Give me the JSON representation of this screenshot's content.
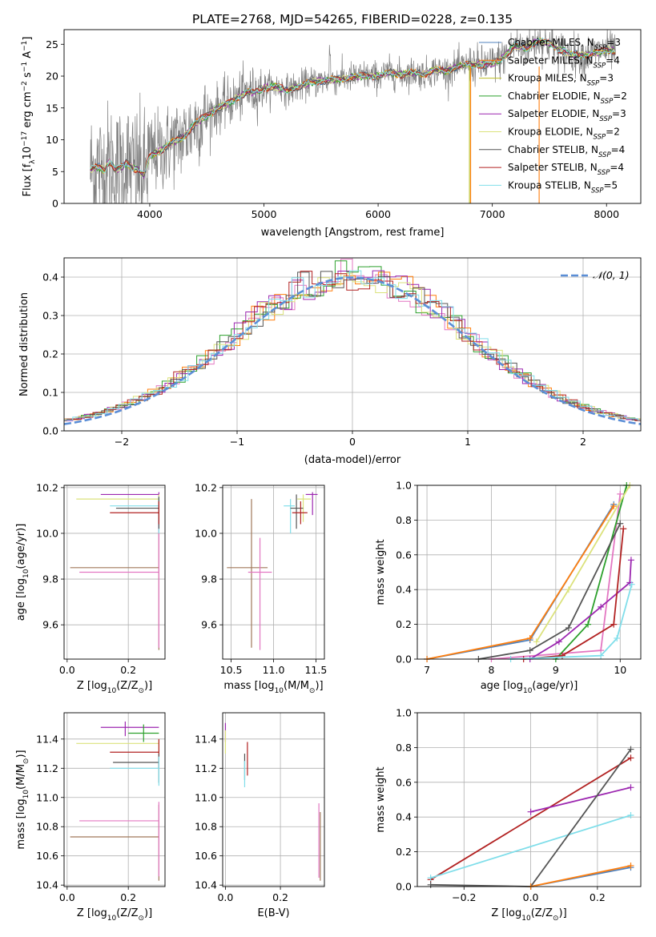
{
  "figure": {
    "title": "PLATE=2768, MJD=54265, FIBERID=0228, z=0.135"
  },
  "colors": {
    "chabrier_miles": "#4f81bd",
    "salpeter_miles": "#ff7f0e",
    "kroupa_miles": "#bcbd22",
    "chabrier_elodie": "#2ca02c",
    "salpeter_elodie": "#9c27b0",
    "kroupa_elodie": "#dbe27c",
    "chabrier_stelib": "#555555",
    "salpeter_stelib": "#b22222",
    "kroupa_stelib": "#80deea",
    "pink": "#e377c2",
    "brown": "#a0785a",
    "data_gray": "#808080",
    "gaussian": "#5b8ed6",
    "grid": "#b0b0b0"
  },
  "legend_spectrum": [
    {
      "text": "Chabrier MILES, N",
      "sub": "SSP",
      "tail": "=3",
      "color": "chabrier_miles"
    },
    {
      "text": "Salpeter MILES, N",
      "sub": "SSP",
      "tail": "=4",
      "color": "salpeter_miles"
    },
    {
      "text": "Kroupa MILES, N",
      "sub": "SSP",
      "tail": "=3",
      "color": "kroupa_miles"
    },
    {
      "text": "Chabrier ELODIE, N",
      "sub": "SSP",
      "tail": "=2",
      "color": "chabrier_elodie"
    },
    {
      "text": "Salpeter ELODIE, N",
      "sub": "SSP",
      "tail": "=3",
      "color": "salpeter_elodie"
    },
    {
      "text": "Kroupa ELODIE, N",
      "sub": "SSP",
      "tail": "=2",
      "color": "kroupa_elodie"
    },
    {
      "text": "Chabrier STELIB, N",
      "sub": "SSP",
      "tail": "=4",
      "color": "chabrier_stelib"
    },
    {
      "text": "Salpeter STELIB, N",
      "sub": "SSP",
      "tail": "=4",
      "color": "salpeter_stelib"
    },
    {
      "text": "Kroupa STELIB, N",
      "sub": "SSP",
      "tail": "=5",
      "color": "kroupa_stelib"
    }
  ],
  "legend_hist": {
    "text": "𝒩(0, 1)"
  },
  "chart_data": [
    {
      "id": "spectrum",
      "type": "line",
      "xlabel": "wavelength [Angstrom, rest frame]",
      "ylabel": "Flux [f_λ 10^-17 erg cm^-2 s^-1 A^-1]",
      "xlim": [
        3250,
        8300
      ],
      "ylim": [
        0,
        27.3
      ],
      "xticks": [
        4000,
        5000,
        6000,
        7000,
        8000
      ],
      "yticks": [
        0,
        5,
        10,
        15,
        20,
        25
      ],
      "grid": false,
      "legend": "top-right",
      "model_shape": [
        [
          3480,
          5.3
        ],
        [
          3550,
          5.8
        ],
        [
          3600,
          5.2
        ],
        [
          3650,
          6.6
        ],
        [
          3700,
          5.2
        ],
        [
          3750,
          5.7
        ],
        [
          3800,
          6.4
        ],
        [
          3850,
          5.6
        ],
        [
          3900,
          5.3
        ],
        [
          3950,
          4.4
        ],
        [
          4000,
          7.5
        ],
        [
          4100,
          8.3
        ],
        [
          4200,
          9.6
        ],
        [
          4300,
          10.5
        ],
        [
          4400,
          12.6
        ],
        [
          4500,
          13.8
        ],
        [
          4600,
          15.0
        ],
        [
          4700,
          15.9
        ],
        [
          4800,
          16.9
        ],
        [
          4860,
          17.6
        ],
        [
          4900,
          17.4
        ],
        [
          5000,
          18.1
        ],
        [
          5100,
          18.4
        ],
        [
          5200,
          17.8
        ],
        [
          5300,
          18.3
        ],
        [
          5400,
          19.0
        ],
        [
          5500,
          19.2
        ],
        [
          5600,
          19.5
        ],
        [
          5700,
          19.6
        ],
        [
          5800,
          19.9
        ],
        [
          5900,
          20.1
        ],
        [
          6000,
          19.9
        ],
        [
          6100,
          20.6
        ],
        [
          6200,
          20.2
        ],
        [
          6300,
          20.6
        ],
        [
          6400,
          20.3
        ],
        [
          6500,
          21.0
        ],
        [
          6600,
          20.8
        ],
        [
          6700,
          21.5
        ],
        [
          6800,
          21.8
        ],
        [
          6900,
          21.7
        ],
        [
          7000,
          21.9
        ],
        [
          7100,
          23.0
        ],
        [
          7200,
          24.8
        ],
        [
          7300,
          24.4
        ],
        [
          7400,
          25.6
        ],
        [
          7500,
          25.1
        ],
        [
          7600,
          24.0
        ],
        [
          7700,
          23.5
        ],
        [
          7800,
          23.2
        ],
        [
          7900,
          23.6
        ],
        [
          8000,
          24.2
        ],
        [
          8080,
          23.8
        ]
      ],
      "dropouts": [
        {
          "x": 6800,
          "color": "kroupa_miles"
        },
        {
          "x": 6810,
          "color": "salpeter_miles"
        },
        {
          "x": 7410,
          "color": "salpeter_miles"
        }
      ]
    },
    {
      "id": "residuals",
      "type": "bar",
      "xlabel": "(data-model)/error",
      "ylabel": "Normed distribution",
      "xlim": [
        -2.5,
        2.5
      ],
      "ylim": [
        0,
        0.45
      ],
      "xticks": [
        -2,
        -1,
        0,
        1,
        2
      ],
      "yticks": [
        0.0,
        0.1,
        0.2,
        0.3,
        0.4
      ],
      "grid": true,
      "legend": "top-right",
      "bin_width": 0.1,
      "series_colors": [
        "pink",
        "salpeter_miles",
        "chabrier_elodie",
        "salpeter_elodie",
        "kroupa_elodie",
        "chabrier_stelib",
        "salpeter_stelib",
        "kroupa_stelib"
      ]
    },
    {
      "id": "age_vs_Z",
      "type": "scatter",
      "xlabel": "Z [log10(Z/Z☉)]",
      "ylabel": "age  [log10(age/yr)]",
      "xlim": [
        -0.01,
        0.32
      ],
      "ylim": [
        9.45,
        10.21
      ],
      "xticks": [
        0.0,
        0.2
      ],
      "yticks": [
        9.6,
        9.8,
        10.0,
        10.2
      ],
      "grid": true,
      "errorbars": [
        {
          "x": 0.3,
          "y": 9.85,
          "x0": 0.01,
          "x1": 0.3,
          "y0": 9.49,
          "y1": 10.15,
          "color": "brown"
        },
        {
          "x": 0.3,
          "y": 9.83,
          "x0": 0.04,
          "x1": 0.3,
          "y0": 9.5,
          "y1": 10.15,
          "color": "pink"
        },
        {
          "x": 0.3,
          "y": 10.17,
          "x0": 0.11,
          "x1": 0.3,
          "y0": 10.02,
          "y1": 10.18,
          "color": "salpeter_elodie"
        },
        {
          "x": 0.3,
          "y": 10.15,
          "x0": 0.03,
          "x1": 0.3,
          "y0": 10.06,
          "y1": 10.17,
          "color": "kroupa_elodie"
        },
        {
          "x": 0.3,
          "y": 10.12,
          "x0": 0.14,
          "x1": 0.3,
          "y0": 10.0,
          "y1": 10.16,
          "color": "kroupa_stelib"
        },
        {
          "x": 0.3,
          "y": 10.11,
          "x0": 0.16,
          "x1": 0.3,
          "y0": 10.02,
          "y1": 10.16,
          "color": "chabrier_stelib"
        },
        {
          "x": 0.3,
          "y": 10.09,
          "x0": 0.14,
          "x1": 0.3,
          "y0": 10.04,
          "y1": 10.14,
          "color": "salpeter_stelib"
        }
      ]
    },
    {
      "id": "age_vs_mass",
      "type": "scatter",
      "xlabel": "mass [log10(M/M☉)]",
      "ylabel": "",
      "xlim": [
        10.4,
        11.6
      ],
      "ylim": [
        9.45,
        10.21
      ],
      "xticks": [
        10.5,
        11.0,
        11.5
      ],
      "yticks": [
        9.6,
        9.8,
        10.0,
        10.2
      ],
      "grid": true,
      "errorbars": [
        {
          "x": 10.74,
          "y": 9.85,
          "x0": 10.45,
          "x1": 10.93,
          "y0": 9.5,
          "y1": 10.15,
          "color": "brown"
        },
        {
          "x": 10.84,
          "y": 9.83,
          "x0": 10.7,
          "x1": 10.98,
          "y0": 9.49,
          "y1": 9.98,
          "color": "pink"
        },
        {
          "x": 11.46,
          "y": 10.17,
          "x0": 11.38,
          "x1": 11.52,
          "y0": 10.08,
          "y1": 10.18,
          "color": "salpeter_elodie"
        },
        {
          "x": 11.35,
          "y": 10.15,
          "x0": 11.28,
          "x1": 11.44,
          "y0": 10.05,
          "y1": 10.17,
          "color": "kroupa_elodie"
        },
        {
          "x": 11.2,
          "y": 10.12,
          "x0": 11.12,
          "x1": 11.25,
          "y0": 10.0,
          "y1": 10.15,
          "color": "kroupa_stelib"
        },
        {
          "x": 11.27,
          "y": 10.11,
          "x0": 11.2,
          "x1": 11.35,
          "y0": 10.02,
          "y1": 10.17,
          "color": "chabrier_stelib"
        },
        {
          "x": 11.32,
          "y": 10.09,
          "x0": 11.22,
          "x1": 11.4,
          "y0": 10.04,
          "y1": 10.14,
          "color": "salpeter_stelib"
        }
      ]
    },
    {
      "id": "weight_vs_age",
      "type": "line",
      "xlabel": "age  [log10(age/yr)]",
      "ylabel": "mass weight",
      "xlim": [
        6.85,
        10.32
      ],
      "ylim": [
        0,
        1.0
      ],
      "xticks": [
        7,
        8,
        9,
        10
      ],
      "yticks": [
        0.0,
        0.2,
        0.4,
        0.6,
        0.8,
        1.0
      ],
      "grid": true,
      "series": [
        {
          "color": "chabrier_miles",
          "points": [
            [
              7.0,
              0.0
            ],
            [
              8.6,
              0.11
            ],
            [
              9.9,
              0.89
            ]
          ]
        },
        {
          "color": "salpeter_miles",
          "points": [
            [
              7.0,
              0.0
            ],
            [
              8.6,
              0.12
            ],
            [
              9.9,
              0.88
            ]
          ]
        },
        {
          "color": "pink",
          "points": [
            [
              8.0,
              0.0
            ],
            [
              9.7,
              0.05
            ],
            [
              10.0,
              0.95
            ]
          ]
        },
        {
          "color": "chabrier_elodie",
          "points": [
            [
              9.0,
              0.0
            ],
            [
              9.5,
              0.2
            ],
            [
              10.1,
              1.0
            ]
          ]
        },
        {
          "color": "kroupa_elodie",
          "points": [
            [
              8.7,
              0.1
            ],
            [
              9.2,
              0.4
            ],
            [
              10.15,
              1.0
            ]
          ]
        },
        {
          "color": "salpeter_elodie",
          "points": [
            [
              8.6,
              0.0
            ],
            [
              9.05,
              0.1
            ],
            [
              9.7,
              0.3
            ],
            [
              10.15,
              0.44
            ],
            [
              10.17,
              0.57
            ]
          ]
        },
        {
          "color": "chabrier_stelib",
          "points": [
            [
              7.8,
              0.0
            ],
            [
              8.6,
              0.05
            ],
            [
              9.2,
              0.18
            ],
            [
              10.0,
              0.78
            ]
          ]
        },
        {
          "color": "salpeter_stelib",
          "points": [
            [
              8.5,
              0.0
            ],
            [
              9.1,
              0.02
            ],
            [
              9.9,
              0.2
            ],
            [
              10.05,
              0.75
            ]
          ]
        },
        {
          "color": "kroupa_stelib",
          "points": [
            [
              8.3,
              0.0
            ],
            [
              9.7,
              0.02
            ],
            [
              9.95,
              0.12
            ],
            [
              10.18,
              0.43
            ]
          ]
        }
      ]
    },
    {
      "id": "mass_vs_Z",
      "type": "scatter",
      "xlabel": "Z [log10(Z/Z☉)]",
      "ylabel": "mass [log10(M/M☉)]",
      "xlim": [
        -0.01,
        0.32
      ],
      "ylim": [
        10.39,
        11.58
      ],
      "xticks": [
        0.0,
        0.2
      ],
      "yticks": [
        10.4,
        10.6,
        10.8,
        11.0,
        11.2,
        11.4
      ],
      "grid": true,
      "errorbars": [
        {
          "x": 0.3,
          "y": 10.73,
          "x0": 0.01,
          "x1": 0.3,
          "y0": 10.43,
          "y1": 10.95,
          "color": "brown"
        },
        {
          "x": 0.3,
          "y": 10.84,
          "x0": 0.04,
          "x1": 0.3,
          "y0": 10.46,
          "y1": 10.97,
          "color": "pink"
        },
        {
          "x": 0.19,
          "y": 11.48,
          "x0": 0.11,
          "x1": 0.3,
          "y0": 11.42,
          "y1": 11.52,
          "color": "salpeter_elodie"
        },
        {
          "x": 0.25,
          "y": 11.44,
          "x0": 0.2,
          "x1": 0.3,
          "y0": 11.38,
          "y1": 11.5,
          "color": "chabrier_elodie"
        },
        {
          "x": 0.3,
          "y": 11.37,
          "x0": 0.03,
          "x1": 0.3,
          "y0": 11.3,
          "y1": 11.4,
          "color": "kroupa_elodie"
        },
        {
          "x": 0.3,
          "y": 11.31,
          "x0": 0.14,
          "x1": 0.3,
          "y0": 11.2,
          "y1": 11.4,
          "color": "salpeter_stelib"
        },
        {
          "x": 0.3,
          "y": 11.24,
          "x0": 0.15,
          "x1": 0.3,
          "y0": 11.1,
          "y1": 11.3,
          "color": "chabrier_stelib"
        },
        {
          "x": 0.3,
          "y": 11.2,
          "x0": 0.14,
          "x1": 0.3,
          "y0": 11.08,
          "y1": 11.28,
          "color": "kroupa_stelib"
        }
      ]
    },
    {
      "id": "mass_vs_ebv",
      "type": "scatter",
      "xlabel": "E(B-V)",
      "ylabel": "",
      "xlim": [
        -0.01,
        0.36
      ],
      "ylim": [
        10.39,
        11.58
      ],
      "xticks": [
        0.0,
        0.2
      ],
      "yticks": [
        10.4,
        10.6,
        10.8,
        11.0,
        11.2,
        11.4
      ],
      "grid": true,
      "errorbars": [
        {
          "x": 0.0,
          "y": 11.43,
          "x0": 0.0,
          "x1": 0.0,
          "y0": 11.38,
          "y1": 11.51,
          "color": "salpeter_elodie"
        },
        {
          "x": 0.0,
          "y": 11.4,
          "x0": 0.0,
          "x1": 0.0,
          "y0": 11.3,
          "y1": 11.46,
          "color": "kroupa_elodie"
        },
        {
          "x": 0.08,
          "y": 11.28,
          "x0": 0.08,
          "x1": 0.08,
          "y0": 11.15,
          "y1": 11.38,
          "color": "salpeter_stelib"
        },
        {
          "x": 0.07,
          "y": 11.22,
          "x0": 0.07,
          "x1": 0.07,
          "y0": 11.12,
          "y1": 11.3,
          "color": "chabrier_stelib"
        },
        {
          "x": 0.07,
          "y": 11.15,
          "x0": 0.07,
          "x1": 0.07,
          "y0": 11.07,
          "y1": 11.25,
          "color": "kroupa_stelib"
        },
        {
          "x": 0.34,
          "y": 10.84,
          "x0": 0.34,
          "x1": 0.34,
          "y0": 10.45,
          "y1": 10.96,
          "color": "pink"
        },
        {
          "x": 0.345,
          "y": 10.73,
          "x0": 0.345,
          "x1": 0.345,
          "y0": 10.43,
          "y1": 10.9,
          "color": "brown"
        }
      ]
    },
    {
      "id": "weight_vs_Z",
      "type": "line",
      "xlabel": "Z [log10(Z/Z☉)]",
      "ylabel": "mass weight",
      "xlim": [
        -0.34,
        0.33
      ],
      "ylim": [
        0,
        1.0
      ],
      "xticks": [
        -0.2,
        0.0,
        0.2
      ],
      "yticks": [
        0.0,
        0.2,
        0.4,
        0.6,
        0.8,
        1.0
      ],
      "grid": true,
      "series": [
        {
          "color": "salpeter_stelib",
          "points": [
            [
              -0.3,
              0.04
            ],
            [
              0.3,
              0.74
            ]
          ]
        },
        {
          "color": "salpeter_elodie",
          "points": [
            [
              0.0,
              0.43
            ],
            [
              0.3,
              0.57
            ]
          ]
        },
        {
          "color": "kroupa_stelib",
          "points": [
            [
              -0.3,
              0.05
            ],
            [
              0.3,
              0.41
            ]
          ]
        },
        {
          "color": "chabrier_stelib",
          "points": [
            [
              -0.3,
              0.01
            ],
            [
              0.0,
              0.0
            ],
            [
              0.3,
              0.79
            ]
          ]
        },
        {
          "color": "chabrier_miles",
          "points": [
            [
              0.0,
              0.0
            ],
            [
              0.3,
              0.11
            ]
          ]
        },
        {
          "color": "salpeter_miles",
          "points": [
            [
              0.0,
              0.0
            ],
            [
              0.3,
              0.12
            ]
          ]
        }
      ]
    }
  ]
}
